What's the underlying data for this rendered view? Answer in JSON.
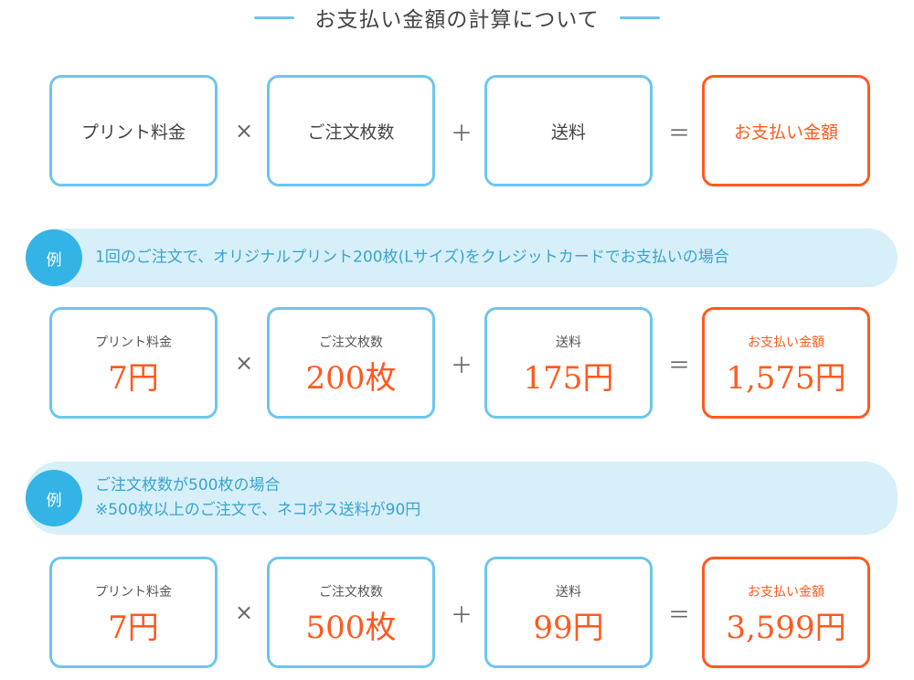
{
  "title": "お支払い金額の計算について",
  "formula": {
    "print_fee": "プリント料金",
    "times": "×",
    "order_count": "ご注文枚数",
    "plus": "＋",
    "shipping": "送料",
    "equals": "＝",
    "total": "お支払い金額"
  },
  "examples": [
    {
      "badge": "例",
      "lines": [
        "1回のご注文で、オリジナルプリント200枚(Lサイズ)をクレジットカードでお支払いの場合"
      ],
      "values": {
        "print_fee_label": "プリント料金",
        "print_fee": "7円",
        "order_count_label": "ご注文枚数",
        "order_count": "200枚",
        "shipping_label": "送料",
        "shipping": "175円",
        "total_label": "お支払い金額",
        "total": "1,575円"
      }
    },
    {
      "badge": "例",
      "lines": [
        "ご注文枚数が500枚の場合",
        "※500枚以上のご注文で、ネコポス送料が90円"
      ],
      "values": {
        "print_fee_label": "プリント料金",
        "print_fee": "7円",
        "order_count_label": "ご注文枚数",
        "order_count": "500枚",
        "shipping_label": "送料",
        "shipping": "99円",
        "total_label": "お支払い金額",
        "total": "3,599円"
      }
    }
  ],
  "colors": {
    "accent_blue": "#6cc6ee",
    "badge_blue": "#34b4e6",
    "banner_bg": "#d7eff9",
    "result_orange": "#ff5a1f"
  }
}
